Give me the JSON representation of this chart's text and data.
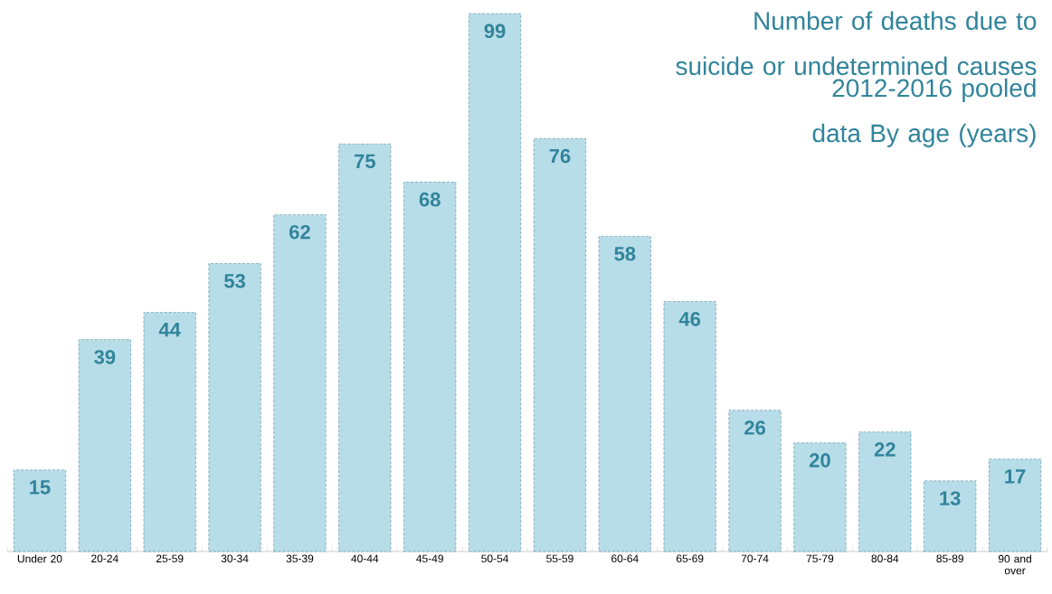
{
  "chart_data": {
    "type": "bar",
    "title": "Number of deaths due to suicide or undetermined causes",
    "subtitle": "2012-2016 pooled data By age (years)",
    "categories": [
      "Under 20",
      "20-24",
      "25-59",
      "30-34",
      "35-39",
      "40-44",
      "45-49",
      "50-54",
      "55-59",
      "60-64",
      "65-69",
      "70-74",
      "75-79",
      "80-84",
      "85-89",
      "90 and over"
    ],
    "values": [
      15,
      39,
      44,
      53,
      62,
      75,
      68,
      99,
      76,
      58,
      46,
      26,
      20,
      22,
      13,
      17
    ],
    "color": "#b7dde8",
    "data_labels": true
  }
}
